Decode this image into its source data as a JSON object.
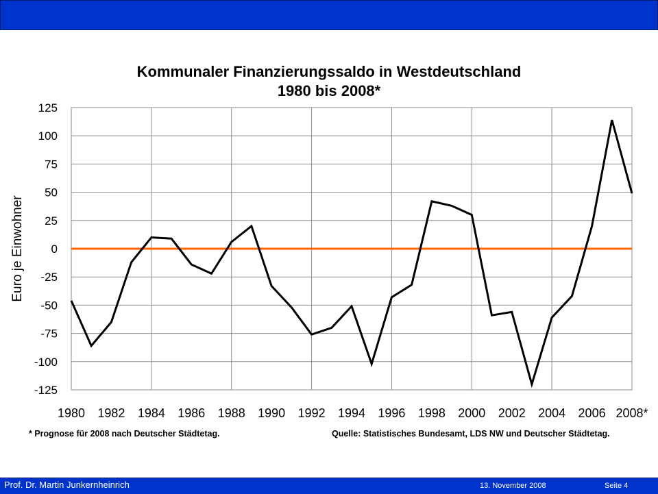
{
  "header": {
    "bar_color": "#0033cc"
  },
  "footer": {
    "author": "Prof. Dr. Martin Junkernheinrich",
    "date": "13. November 2008",
    "page": "Seite 4"
  },
  "notes": {
    "footnote": "* Prognose für 2008 nach Deutscher Städtetag.",
    "source": "Quelle: Statistisches Bundesamt, LDS NW und Deutscher Städtetag."
  },
  "chart_data": {
    "type": "line",
    "title": "Kommunaler Finanzierungssaldo in Westdeutschland",
    "subtitle": "1980 bis 2008*",
    "xlabel": "",
    "ylabel": "Euro je Einwohner",
    "x": [
      1980,
      1981,
      1982,
      1983,
      1984,
      1985,
      1986,
      1987,
      1988,
      1989,
      1990,
      1991,
      1992,
      1993,
      1994,
      1995,
      1996,
      1997,
      1998,
      1999,
      2000,
      2001,
      2002,
      2003,
      2004,
      2005,
      2006,
      2007,
      2008
    ],
    "x_tick_labels": [
      "1980",
      "1982",
      "1984",
      "1986",
      "1988",
      "1990",
      "1992",
      "1994",
      "1996",
      "1998",
      "2000",
      "2002",
      "2004",
      "2006",
      "2008*"
    ],
    "y_ticks": [
      125,
      100,
      75,
      50,
      25,
      0,
      -25,
      -50,
      -75,
      -100,
      -125
    ],
    "ylim": [
      -125,
      125
    ],
    "xlim": [
      1980,
      2008
    ],
    "grid": true,
    "series": [
      {
        "values": [
          -46,
          -86,
          -65,
          -12,
          10,
          9,
          -14,
          -22,
          6,
          20,
          -33,
          -52,
          -76,
          -70,
          -51,
          -102,
          -43,
          -32,
          42,
          38,
          30,
          -59,
          -56,
          -120,
          -61,
          -42,
          20,
          114,
          49
        ],
        "color": "#000000"
      }
    ],
    "reference_line": {
      "y": 0,
      "color": "#ff6600"
    }
  }
}
